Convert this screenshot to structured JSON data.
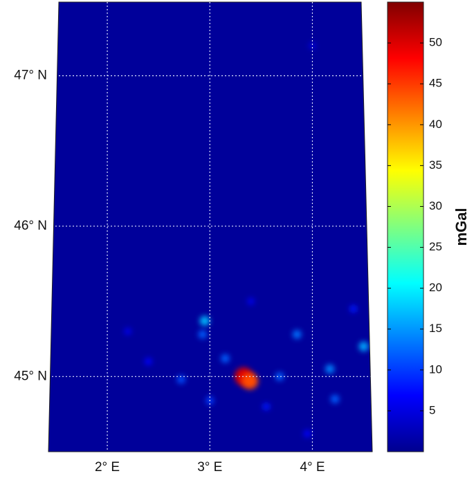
{
  "map": {
    "lat_range": [
      44.5,
      47.49
    ],
    "lon_range": [
      1.48,
      4.53
    ],
    "lat_ticks": [
      {
        "value": 45,
        "label": "45° N"
      },
      {
        "value": 46,
        "label": "46° N"
      },
      {
        "value": 47,
        "label": "47° N"
      }
    ],
    "lon_ticks": [
      {
        "value": 2,
        "label": "2° E"
      },
      {
        "value": 3,
        "label": "3° E"
      },
      {
        "value": 4,
        "label": "4° E"
      }
    ],
    "anomalies": [
      {
        "lon": 3.33,
        "lat": 45.0,
        "value": 50
      },
      {
        "lon": 3.39,
        "lat": 44.97,
        "value": 44
      },
      {
        "lon": 2.95,
        "lat": 45.37,
        "value": 17
      },
      {
        "lon": 2.93,
        "lat": 45.28,
        "value": 12
      },
      {
        "lon": 3.15,
        "lat": 45.12,
        "value": 12
      },
      {
        "lon": 3.85,
        "lat": 45.28,
        "value": 13
      },
      {
        "lon": 4.17,
        "lat": 45.05,
        "value": 14
      },
      {
        "lon": 4.5,
        "lat": 45.2,
        "value": 16
      },
      {
        "lon": 4.22,
        "lat": 44.85,
        "value": 12
      },
      {
        "lon": 2.72,
        "lat": 44.98,
        "value": 11
      },
      {
        "lon": 3.68,
        "lat": 45.0,
        "value": 12
      },
      {
        "lon": 3.0,
        "lat": 44.84,
        "value": 10
      },
      {
        "lon": 3.55,
        "lat": 44.8,
        "value": 8
      },
      {
        "lon": 2.4,
        "lat": 45.1,
        "value": 7
      },
      {
        "lon": 3.95,
        "lat": 44.62,
        "value": 7
      },
      {
        "lon": 4.4,
        "lat": 45.45,
        "value": 8
      },
      {
        "lon": 2.2,
        "lat": 45.3,
        "value": 6
      },
      {
        "lon": 3.4,
        "lat": 45.5,
        "value": 6
      },
      {
        "lon": 4.0,
        "lat": 47.2,
        "value": 5
      }
    ]
  },
  "colorbar": {
    "label": "mGal",
    "range": [
      0,
      55
    ],
    "ticks": [
      5,
      10,
      15,
      20,
      25,
      30,
      35,
      40,
      45,
      50
    ]
  }
}
